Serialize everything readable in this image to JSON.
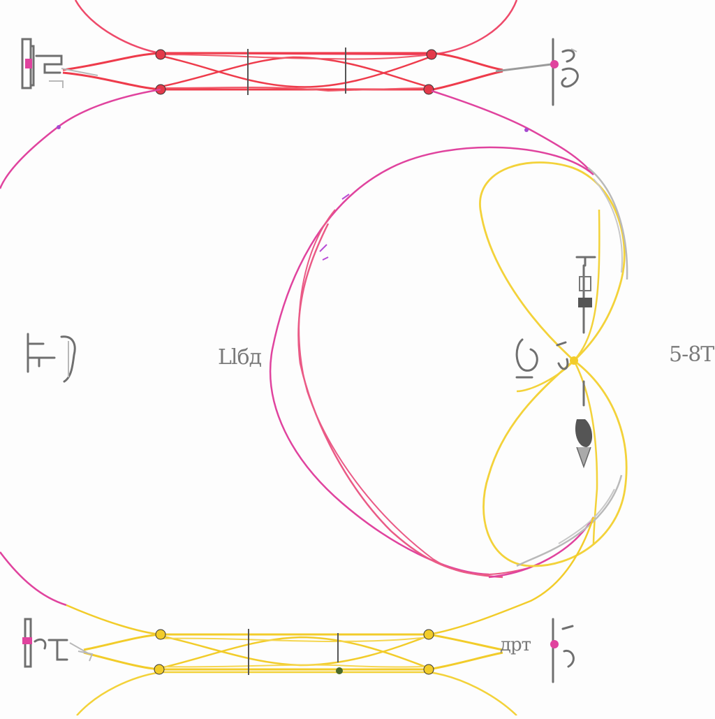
{
  "diagram": {
    "labels": {
      "center_left": "Llбд",
      "right": "5-8T",
      "top_right_fixture": "",
      "bottom_right_fixture": "дрт"
    },
    "colors": {
      "background": "#fdfdfd",
      "red_track": "#ee3b4b",
      "magenta_track": "#e0439e",
      "pink_loop": "#ea5a86",
      "yellow_track": "#f2cc2a",
      "yellow_loop": "#f3d23a",
      "gray_wire": "#b9b9b9",
      "fixture": "#6f6f6f"
    }
  }
}
